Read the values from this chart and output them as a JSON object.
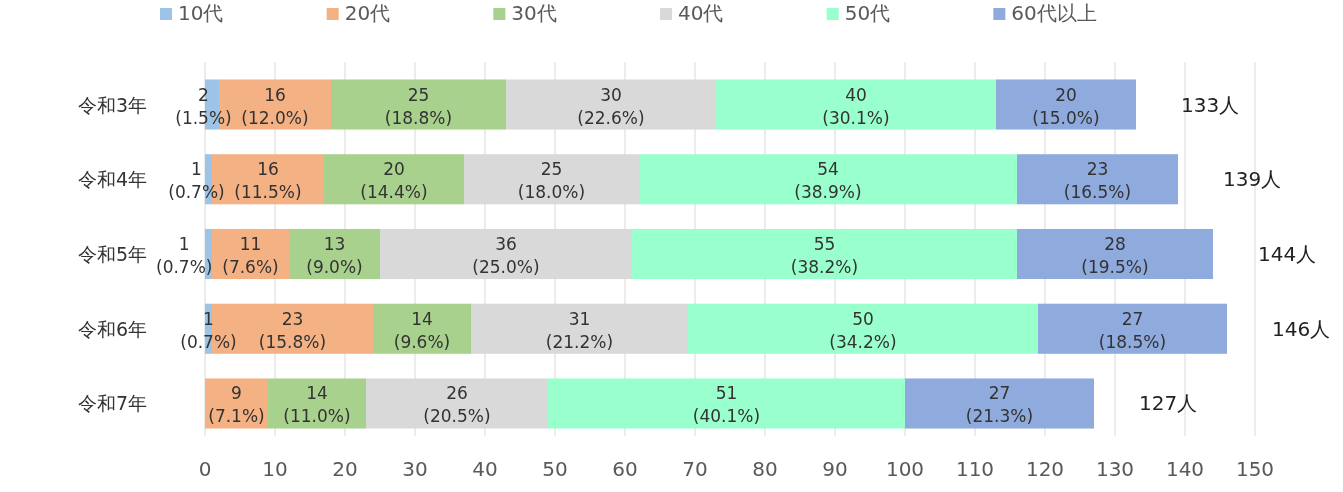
{
  "chart_data": {
    "type": "bar",
    "orientation": "horizontal",
    "stacked": true,
    "categories": [
      "令和3年",
      "令和4年",
      "令和5年",
      "令和6年",
      "令和7年"
    ],
    "series": [
      {
        "name": "10代",
        "color": "#9dc3e6",
        "values": [
          2,
          1,
          1,
          1,
          0
        ],
        "value_labels": [
          "2\n(1.5%)",
          "1\n(0.7%)",
          "1\n(0.7%)",
          "1\n(0.7%)",
          null
        ]
      },
      {
        "name": "20代",
        "color": "#f4b183",
        "values": [
          16,
          16,
          11,
          23,
          9
        ],
        "value_labels": [
          "16\n(12.0%)",
          "16\n(11.5%)",
          "11\n(7.6%)",
          "23\n(15.8%)",
          "9\n(7.1%)"
        ]
      },
      {
        "name": "30代",
        "color": "#a9d18e",
        "values": [
          25,
          20,
          13,
          14,
          14
        ],
        "value_labels": [
          "25\n(18.8%)",
          "20\n(14.4%)",
          "13\n(9.0%)",
          "14\n(9.6%)",
          "14\n(11.0%)"
        ]
      },
      {
        "name": "40代",
        "color": "#d9d9d9",
        "values": [
          30,
          25,
          36,
          31,
          26
        ],
        "value_labels": [
          "30\n(22.6%)",
          "25\n(18.0%)",
          "36\n(25.0%)",
          "31\n(21.2%)",
          "26\n(20.5%)"
        ]
      },
      {
        "name": "50代",
        "color": "#99ffcc",
        "values": [
          40,
          54,
          55,
          50,
          51
        ],
        "value_labels": [
          "40\n(30.1%)",
          "54\n(38.9%)",
          "55\n(38.2%)",
          "50\n(34.2%)",
          "51\n(40.1%)"
        ]
      },
      {
        "name": "60代以上",
        "color": "#8faadc",
        "values": [
          20,
          23,
          28,
          27,
          27
        ],
        "value_labels": [
          "20\n(15.0%)",
          "23\n(16.5%)",
          "28\n(19.5%)",
          "27\n(18.5%)",
          "27\n(21.3%)"
        ]
      }
    ],
    "totals": [
      "133人",
      "139人",
      "144人",
      "146人",
      "127人"
    ],
    "xlim": [
      0,
      150
    ],
    "xticks": [
      0,
      10,
      20,
      30,
      40,
      50,
      60,
      70,
      80,
      90,
      100,
      110,
      120,
      130,
      140,
      150
    ],
    "grid": "x",
    "legend": "top"
  }
}
